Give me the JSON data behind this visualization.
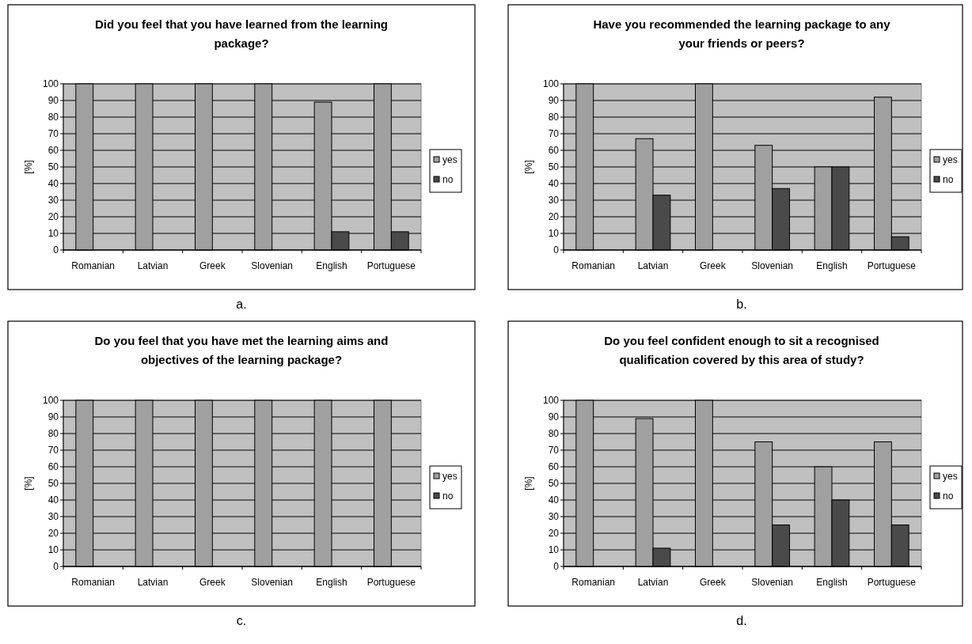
{
  "chart_data": [
    {
      "type": "bar",
      "title": "Did you feel that you have learned from the learning package?",
      "ylabel": "[%]",
      "annotations": [
        "a."
      ],
      "categories": [
        "Romanian",
        "Latvian",
        "Greek",
        "Slovenian",
        "English",
        "Portuguese"
      ],
      "series": [
        {
          "name": "yes",
          "color": "#a0a0a0",
          "values": [
            100,
            100,
            100,
            100,
            89,
            100
          ]
        },
        {
          "name": "no",
          "color": "#4a4a4a",
          "values": [
            0,
            0,
            0,
            0,
            11,
            11
          ]
        }
      ],
      "ylim": [
        0,
        100
      ],
      "yticks": [
        0,
        10,
        20,
        30,
        40,
        50,
        60,
        70,
        80,
        90,
        100
      ],
      "grid": "y",
      "legend": "right"
    },
    {
      "type": "bar",
      "title": "Have you recommended the learning package to any your friends or peers?",
      "ylabel": "[%]",
      "annotations": [
        "b."
      ],
      "categories": [
        "Romanian",
        "Latvian",
        "Greek",
        "Slovenian",
        "English",
        "Portuguese"
      ],
      "series": [
        {
          "name": "yes",
          "color": "#a0a0a0",
          "values": [
            100,
            67,
            100,
            63,
            50,
            92
          ]
        },
        {
          "name": "no",
          "color": "#4a4a4a",
          "values": [
            0,
            33,
            0,
            37,
            50,
            8
          ]
        }
      ],
      "ylim": [
        0,
        100
      ],
      "yticks": [
        0,
        10,
        20,
        30,
        40,
        50,
        60,
        70,
        80,
        90,
        100
      ],
      "grid": "y",
      "legend": "right"
    },
    {
      "type": "bar",
      "title": "Do you feel that you have met the learning aims and objectives of the learning package?",
      "ylabel": "[%]",
      "annotations": [
        "c."
      ],
      "categories": [
        "Romanian",
        "Latvian",
        "Greek",
        "Slovenian",
        "English",
        "Portuguese"
      ],
      "series": [
        {
          "name": "yes",
          "color": "#a0a0a0",
          "values": [
            100,
            100,
            100,
            100,
            100,
            100
          ]
        },
        {
          "name": "no",
          "color": "#4a4a4a",
          "values": [
            0,
            0,
            0,
            0,
            0,
            0
          ]
        }
      ],
      "ylim": [
        0,
        100
      ],
      "yticks": [
        0,
        10,
        20,
        30,
        40,
        50,
        60,
        70,
        80,
        90,
        100
      ],
      "grid": "y",
      "legend": "right"
    },
    {
      "type": "bar",
      "title": "Do you feel confident enough to sit a recognised qualification covered by this area of study?",
      "ylabel": "[%]",
      "annotations": [
        "d."
      ],
      "categories": [
        "Romanian",
        "Latvian",
        "Greek",
        "Slovenian",
        "English",
        "Portuguese"
      ],
      "series": [
        {
          "name": "yes",
          "color": "#a0a0a0",
          "values": [
            100,
            89,
            100,
            75,
            60,
            75
          ]
        },
        {
          "name": "no",
          "color": "#4a4a4a",
          "values": [
            0,
            11,
            0,
            25,
            40,
            25
          ]
        }
      ],
      "ylim": [
        0,
        100
      ],
      "yticks": [
        0,
        10,
        20,
        30,
        40,
        50,
        60,
        70,
        80,
        90,
        100
      ],
      "grid": "y",
      "legend": "right"
    }
  ]
}
